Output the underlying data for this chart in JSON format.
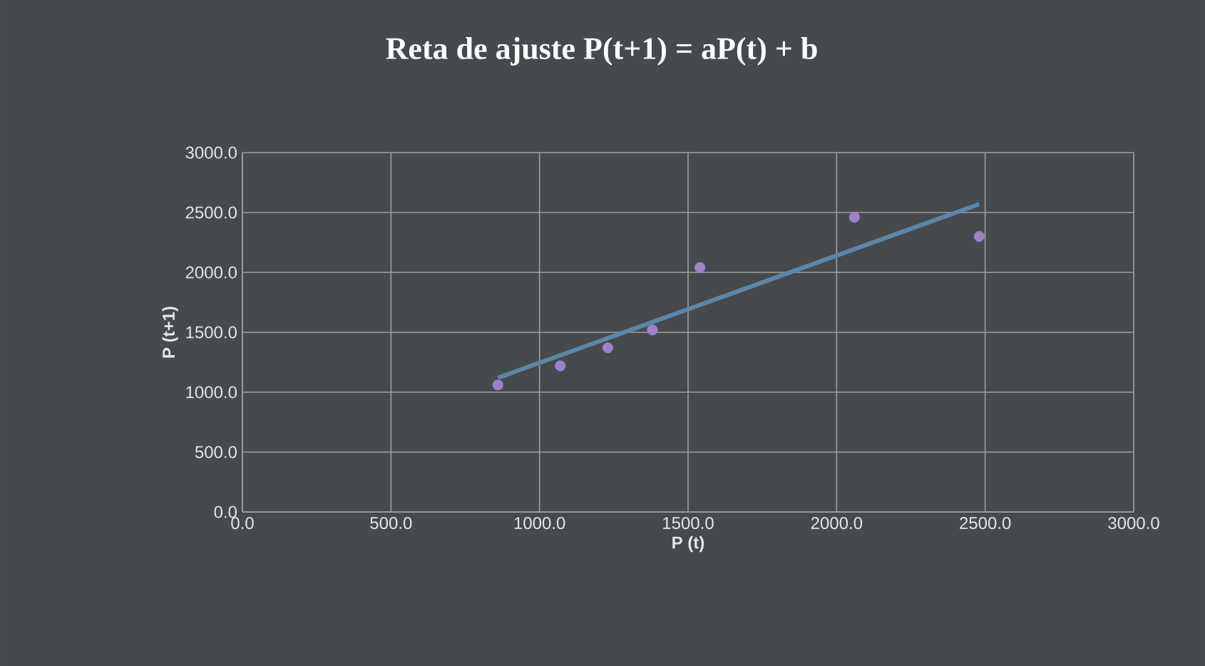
{
  "chart_data": {
    "type": "scatter",
    "title": "Reta de ajuste P(t+1) = aP(t) + b",
    "xlabel": "P (t)",
    "ylabel": "P (t+1)",
    "xlim": [
      0,
      3000
    ],
    "ylim": [
      0,
      3000
    ],
    "xticks": [
      {
        "value": 0,
        "label": "0.0"
      },
      {
        "value": 500,
        "label": "500.0"
      },
      {
        "value": 1000,
        "label": "1000.0"
      },
      {
        "value": 1500,
        "label": "1500.0"
      },
      {
        "value": 2000,
        "label": "2000.0"
      },
      {
        "value": 2500,
        "label": "2500.0"
      },
      {
        "value": 3000,
        "label": "3000.0"
      }
    ],
    "yticks": [
      {
        "value": 0,
        "label": "0.0"
      },
      {
        "value": 500,
        "label": "500.0"
      },
      {
        "value": 1000,
        "label": "1000.0"
      },
      {
        "value": 1500,
        "label": "1500.0"
      },
      {
        "value": 2000,
        "label": "2000.0"
      },
      {
        "value": 2500,
        "label": "2500.0"
      },
      {
        "value": 3000,
        "label": "3000.0"
      }
    ],
    "grid": true,
    "series": [
      {
        "marker": "circle",
        "color": "#9b82c9",
        "x": [
          860,
          1070,
          1230,
          1380,
          1540,
          2060,
          2480
        ],
        "values": [
          1060,
          1220,
          1370,
          1520,
          2040,
          2460,
          2300
        ]
      },
      {
        "type": "line",
        "marker": "none",
        "line_style": "solid",
        "color": "#5b87a8",
        "x": [
          860,
          2480
        ],
        "values": [
          1120,
          2570
        ]
      }
    ]
  }
}
